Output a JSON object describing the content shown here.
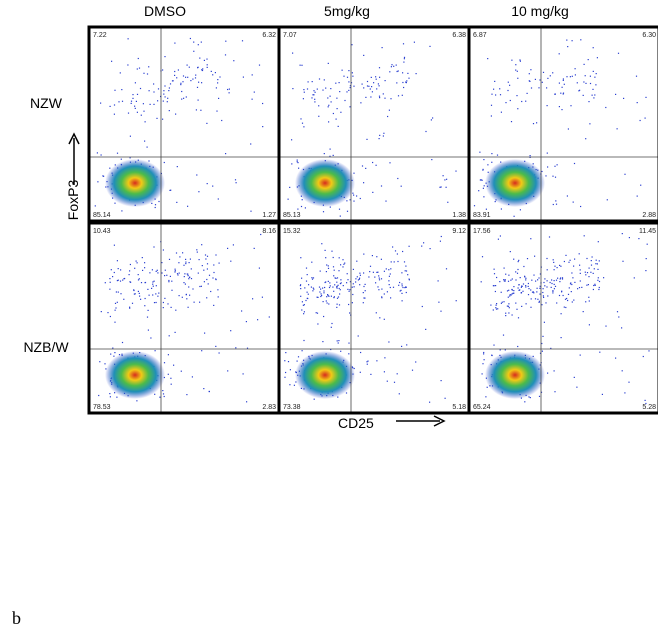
{
  "columns": [
    "DMSO",
    "5mg/kg",
    "10 mg/kg"
  ],
  "rows": [
    {
      "label": "NZW",
      "panels": [
        {
          "ul": "7.22",
          "ur": "6.32",
          "ll": "85.14",
          "lr": "1.27"
        },
        {
          "ul": "7.07",
          "ur": "6.38",
          "ll": "85.13",
          "lr": "1.38"
        },
        {
          "ul": "6.87",
          "ur": "6.30",
          "ll": "83.91",
          "lr": "2.88"
        }
      ]
    },
    {
      "label": "NZB/W",
      "panels": [
        {
          "ul": "10.43",
          "ur": "8.16",
          "ll": "78.53",
          "lr": "2.83"
        },
        {
          "ul": "15.32",
          "ur": "9.12",
          "ll": "73.38",
          "lr": "5.18"
        },
        {
          "ul": "17.56",
          "ur": "11.45",
          "ll": "65.24",
          "lr": "5.28"
        }
      ]
    }
  ],
  "y_axis_label": "FoxP3",
  "x_axis_label": "CD25",
  "figure_label": "b"
}
